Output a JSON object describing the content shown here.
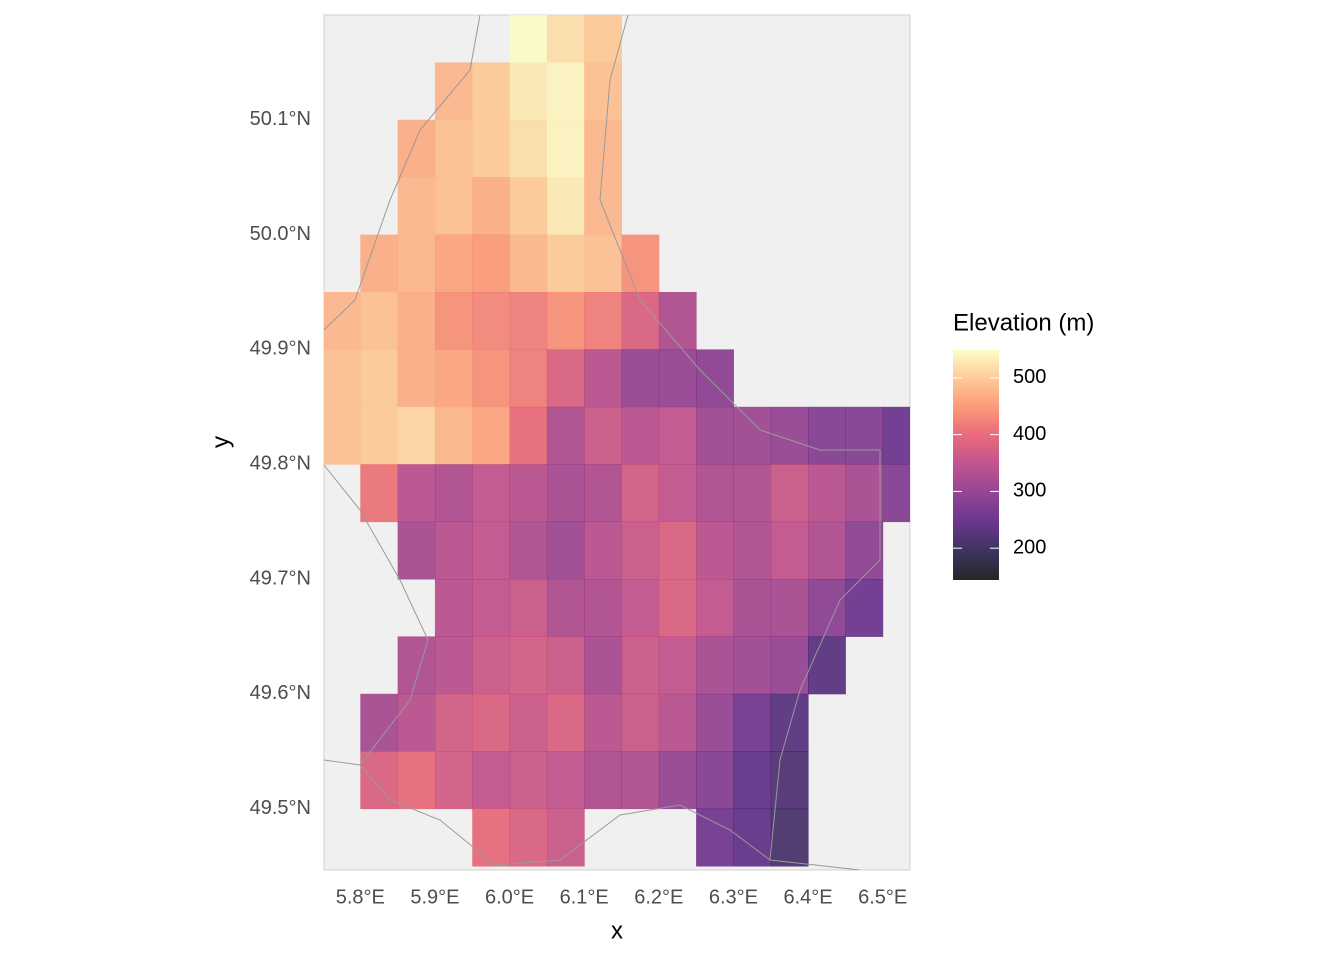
{
  "chart_data": {
    "type": "raster",
    "x_label": "x",
    "y_label": "y",
    "xlim": [
      5.75,
      6.55
    ],
    "ylim": [
      49.45,
      50.2
    ],
    "xticks": [
      {
        "value": 5.8,
        "label": "5.8°E"
      },
      {
        "value": 5.9,
        "label": "5.9°E"
      },
      {
        "value": 6.0,
        "label": "6.0°E"
      },
      {
        "value": 6.1,
        "label": "6.1°E"
      },
      {
        "value": 6.2,
        "label": "6.2°E"
      },
      {
        "value": 6.3,
        "label": "6.3°E"
      },
      {
        "value": 6.4,
        "label": "6.4°E"
      },
      {
        "value": 6.5,
        "label": "6.5°E"
      }
    ],
    "yticks": [
      {
        "value": 49.5,
        "label": "49.5°N"
      },
      {
        "value": 49.6,
        "label": "49.6°N"
      },
      {
        "value": 49.7,
        "label": "49.7°N"
      },
      {
        "value": 49.8,
        "label": "49.8°N"
      },
      {
        "value": 49.9,
        "label": "49.9°N"
      },
      {
        "value": 50.0,
        "label": "50.0°N"
      },
      {
        "value": 50.1,
        "label": "50.1°N"
      }
    ],
    "elevation": [
      [
        null,
        null,
        null,
        null,
        null,
        550,
        520,
        500,
        null,
        null,
        null,
        null,
        null,
        null,
        null,
        null
      ],
      [
        null,
        null,
        null,
        480,
        500,
        530,
        540,
        490,
        null,
        null,
        null,
        null,
        null,
        null,
        null,
        null
      ],
      [
        null,
        null,
        470,
        490,
        500,
        520,
        540,
        480,
        null,
        null,
        null,
        null,
        null,
        null,
        null,
        null
      ],
      [
        null,
        null,
        480,
        490,
        470,
        500,
        530,
        480,
        null,
        null,
        null,
        null,
        null,
        null,
        null,
        null
      ],
      [
        null,
        470,
        480,
        460,
        450,
        480,
        500,
        490,
        440,
        null,
        null,
        null,
        null,
        null,
        null,
        null
      ],
      [
        480,
        490,
        470,
        440,
        430,
        420,
        440,
        420,
        380,
        330,
        null,
        null,
        null,
        null,
        null,
        null
      ],
      [
        490,
        500,
        470,
        460,
        440,
        420,
        380,
        340,
        300,
        300,
        290,
        null,
        null,
        null,
        null,
        null
      ],
      [
        490,
        500,
        510,
        480,
        460,
        400,
        330,
        360,
        340,
        350,
        310,
        310,
        300,
        280,
        280,
        250
      ],
      [
        null,
        410,
        340,
        330,
        350,
        340,
        320,
        330,
        370,
        350,
        330,
        330,
        360,
        340,
        320,
        280
      ],
      [
        null,
        null,
        320,
        340,
        350,
        330,
        310,
        340,
        360,
        380,
        340,
        330,
        350,
        330,
        290,
        null
      ],
      [
        null,
        null,
        null,
        340,
        350,
        360,
        330,
        330,
        350,
        380,
        350,
        320,
        320,
        290,
        250,
        null
      ],
      [
        null,
        null,
        330,
        340,
        360,
        370,
        360,
        320,
        360,
        350,
        320,
        310,
        300,
        230,
        null,
        null
      ],
      [
        null,
        320,
        340,
        370,
        380,
        360,
        380,
        340,
        360,
        340,
        300,
        260,
        230,
        null,
        null,
        null
      ],
      [
        null,
        380,
        400,
        370,
        350,
        360,
        350,
        330,
        330,
        300,
        280,
        240,
        220,
        null,
        null,
        null
      ],
      [
        null,
        null,
        null,
        null,
        400,
        380,
        360,
        null,
        null,
        null,
        260,
        240,
        210,
        null,
        null,
        null
      ]
    ],
    "legend": {
      "title": "Elevation (m)",
      "colormap": "magma",
      "lim": [
        144,
        549
      ],
      "ticks": [
        200,
        300,
        400,
        500
      ]
    }
  }
}
